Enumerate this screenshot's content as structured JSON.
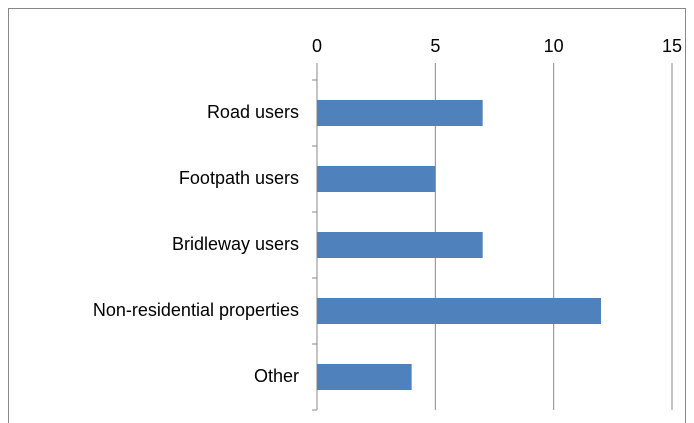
{
  "chart_data": {
    "type": "bar",
    "orientation": "horizontal",
    "categories": [
      "Road users",
      "Footpath users",
      "Bridleway users",
      "Non-residential properties",
      "Other"
    ],
    "values": [
      7,
      5,
      7,
      12,
      4
    ],
    "color": "#4f81bd",
    "xlim": [
      0,
      15
    ],
    "xticks": [
      0,
      5,
      10,
      15
    ],
    "grid": true
  }
}
